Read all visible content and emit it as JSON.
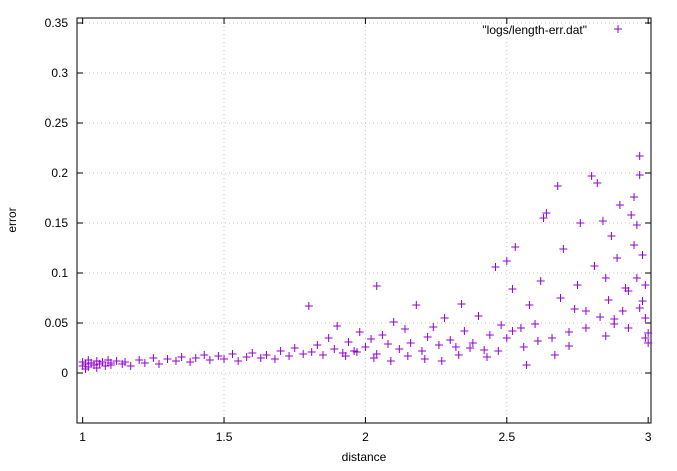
{
  "chart_data": {
    "type": "scatter",
    "title": "",
    "xlabel": "distance",
    "ylabel": "error",
    "xlim": [
      0.98,
      3.01
    ],
    "ylim": [
      -0.05,
      0.355
    ],
    "x_ticks": [
      1,
      1.5,
      2,
      2.5,
      3
    ],
    "x_tick_labels": [
      "1",
      "1.5",
      "2",
      "2.5",
      "3"
    ],
    "y_ticks": [
      0,
      0.05,
      0.1,
      0.15,
      0.2,
      0.25,
      0.3,
      0.35
    ],
    "y_tick_labels": [
      "0",
      "0.05",
      "0.1",
      "0.15",
      "0.2",
      "0.25",
      "0.3",
      "0.35"
    ],
    "grid": true,
    "legend_position": "top-right",
    "marker": "+",
    "colors": {
      "series": "#9400d3",
      "grid": "#c8c8c8",
      "axis": "#000000"
    },
    "series": [
      {
        "name": "\"logs/length-err.dat\"",
        "x": [
          1.0,
          1.0,
          1.01,
          1.01,
          1.02,
          1.02,
          1.03,
          1.04,
          1.05,
          1.05,
          1.06,
          1.07,
          1.08,
          1.09,
          1.1,
          1.1,
          1.12,
          1.14,
          1.15,
          1.17,
          1.2,
          1.22,
          1.25,
          1.27,
          1.3,
          1.33,
          1.35,
          1.38,
          1.4,
          1.43,
          1.45,
          1.48,
          1.5,
          1.53,
          1.55,
          1.58,
          1.6,
          1.63,
          1.65,
          1.68,
          1.7,
          1.73,
          1.75,
          1.78,
          1.8,
          1.81,
          1.83,
          1.85,
          1.87,
          1.89,
          1.9,
          1.92,
          1.94,
          1.96,
          1.98,
          2.0,
          2.02,
          2.04,
          2.04,
          2.06,
          2.08,
          2.1,
          2.12,
          2.14,
          2.16,
          2.18,
          2.2,
          2.22,
          2.24,
          2.26,
          2.28,
          2.3,
          2.32,
          2.34,
          2.35,
          2.38,
          2.4,
          2.42,
          2.44,
          2.46,
          2.48,
          2.5,
          2.5,
          2.52,
          2.53,
          2.55,
          2.56,
          2.58,
          2.6,
          2.62,
          2.63,
          2.64,
          2.66,
          2.68,
          2.69,
          2.7,
          2.72,
          2.74,
          2.75,
          2.76,
          2.78,
          2.8,
          2.81,
          2.82,
          2.83,
          2.84,
          2.85,
          2.86,
          2.87,
          2.88,
          2.89,
          2.9,
          2.91,
          2.92,
          2.93,
          2.94,
          2.95,
          2.95,
          2.96,
          2.96,
          2.97,
          2.97,
          2.98,
          2.98,
          2.99,
          2.99,
          3.0,
          3.0,
          2.97,
          2.99,
          2.93,
          2.88,
          2.85,
          2.78,
          2.72,
          2.67,
          2.61,
          2.57,
          2.52,
          2.47,
          2.43,
          2.37,
          2.33,
          2.27,
          2.21,
          2.15,
          2.09,
          2.03,
          1.97,
          1.93
        ],
        "y": [
          0.007,
          0.011,
          0.004,
          0.009,
          0.013,
          0.006,
          0.01,
          0.008,
          0.012,
          0.005,
          0.009,
          0.011,
          0.007,
          0.013,
          0.008,
          0.01,
          0.012,
          0.009,
          0.011,
          0.007,
          0.013,
          0.01,
          0.015,
          0.009,
          0.014,
          0.012,
          0.016,
          0.011,
          0.015,
          0.018,
          0.013,
          0.017,
          0.014,
          0.019,
          0.012,
          0.016,
          0.02,
          0.015,
          0.018,
          0.014,
          0.022,
          0.017,
          0.025,
          0.019,
          0.067,
          0.021,
          0.028,
          0.018,
          0.035,
          0.024,
          0.047,
          0.02,
          0.031,
          0.022,
          0.041,
          0.026,
          0.034,
          0.087,
          0.019,
          0.038,
          0.029,
          0.051,
          0.024,
          0.044,
          0.03,
          0.068,
          0.022,
          0.036,
          0.046,
          0.028,
          0.055,
          0.033,
          0.026,
          0.069,
          0.042,
          0.03,
          0.057,
          0.023,
          0.038,
          0.106,
          0.048,
          0.112,
          0.035,
          0.084,
          0.126,
          0.045,
          0.026,
          0.068,
          0.049,
          0.092,
          0.155,
          0.16,
          0.035,
          0.187,
          0.075,
          0.124,
          0.041,
          0.064,
          0.088,
          0.15,
          0.045,
          0.197,
          0.107,
          0.19,
          0.056,
          0.152,
          0.095,
          0.073,
          0.137,
          0.049,
          0.115,
          0.168,
          0.062,
          0.085,
          0.045,
          0.158,
          0.128,
          0.176,
          0.148,
          0.095,
          0.217,
          0.198,
          0.118,
          0.072,
          0.088,
          0.055,
          0.04,
          0.03,
          0.065,
          0.035,
          0.082,
          0.054,
          0.037,
          0.062,
          0.027,
          0.018,
          0.032,
          0.008,
          0.042,
          0.022,
          0.016,
          0.025,
          0.018,
          0.012,
          0.014,
          0.017,
          0.012,
          0.015,
          0.021,
          0.017
        ]
      }
    ]
  }
}
